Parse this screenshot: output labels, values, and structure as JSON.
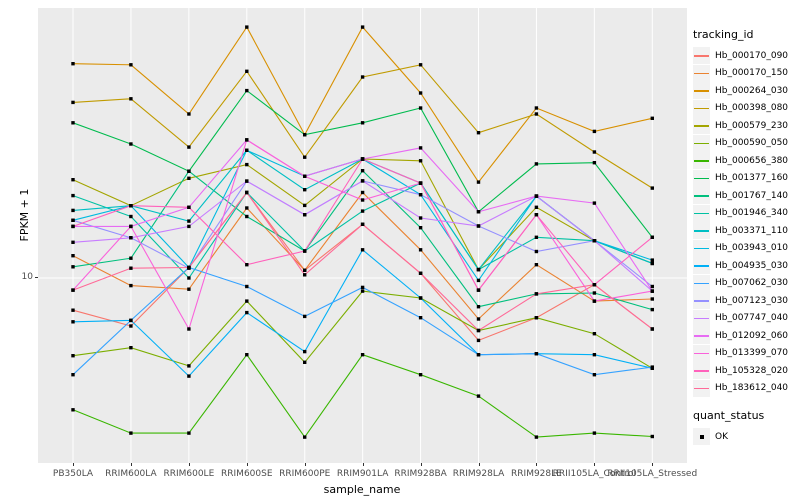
{
  "axes": {
    "x_title": "sample_name",
    "y_title": "FPKM + 1",
    "y_tick_label": "10"
  },
  "legend": {
    "tracking_title": "tracking_id",
    "quant_title": "quant_status",
    "quant_items": [
      {
        "label": "OK",
        "glyph": "black-square"
      }
    ]
  },
  "style": {
    "panel_bg": "#EBEBEB",
    "gridline_color": "#FFFFFF",
    "point_color": "#000000",
    "axis_text_color": "#4D4D4D",
    "legend_key_bg": "#F2F2F2"
  },
  "chart_data": {
    "type": "line",
    "scale_y": "log10",
    "title": "",
    "xlabel": "sample_name",
    "ylabel": "FPKM + 1",
    "ylim": [
      1,
      288
    ],
    "y_breaks_shown": [
      10
    ],
    "grid": "vertical-per-category-plus-y10",
    "legend_position": "right",
    "point_shape": "filled-black-square (quant_status OK)",
    "categories": [
      "PB350LA",
      "RRIM600LA",
      "RRIM600LE",
      "RRIM600SE",
      "RRIM600PE",
      "RRIM901LA",
      "RRIM928BA",
      "RRIM928LA",
      "RRIM928LE",
      "RRII105LA_Control",
      "RRII105LA_Stressed"
    ],
    "series": [
      {
        "name": "Hb_000170_090",
        "color": "#F8766D",
        "values": [
          6.7,
          5.5,
          11.4,
          29,
          11,
          19.5,
          10.6,
          4.6,
          6.1,
          9.2,
          5.3
        ]
      },
      {
        "name": "Hb_000170_150",
        "color": "#EA8331",
        "values": [
          13.2,
          9.1,
          8.7,
          23.9,
          11,
          29,
          14.2,
          6.0,
          11.8,
          7.5,
          7.7
        ]
      },
      {
        "name": "Hb_000264_030",
        "color": "#D89000",
        "values": [
          144,
          142,
          77,
          227,
          59.5,
          227,
          100,
          33,
          83,
          62,
          73
        ]
      },
      {
        "name": "Hb_000398_080",
        "color": "#C09B00",
        "values": [
          89,
          93,
          51,
          131,
          45,
          122,
          142,
          61,
          77,
          48,
          30.6
        ]
      },
      {
        "name": "Hb_000579_230",
        "color": "#A3A500",
        "values": [
          34,
          24.6,
          34.6,
          41,
          24.7,
          44,
          43,
          11.1,
          24.1,
          15.9,
          12
        ]
      },
      {
        "name": "Hb_000590_050",
        "color": "#7CAE00",
        "values": [
          3.8,
          4.2,
          3.35,
          7.5,
          3.5,
          8.5,
          7.8,
          5.2,
          6.1,
          5.0,
          3.25
        ]
      },
      {
        "name": "Hb_000656_380",
        "color": "#39B600",
        "values": [
          1.94,
          1.45,
          1.45,
          3.85,
          1.38,
          3.85,
          3.0,
          2.3,
          1.38,
          1.45,
          1.39
        ]
      },
      {
        "name": "Hb_001377_160",
        "color": "#00BB4E",
        "values": [
          69,
          53,
          37.8,
          103,
          59.5,
          69,
          83,
          22.8,
          41.4,
          42,
          16.6
        ]
      },
      {
        "name": "Hb_001767_140",
        "color": "#00BF7D",
        "values": [
          11.5,
          12.8,
          37.8,
          21.5,
          14,
          38,
          18.7,
          7.0,
          8.2,
          8.3,
          6.75
        ]
      },
      {
        "name": "Hb_001946_340",
        "color": "#00C1A3",
        "values": [
          27.9,
          21.5,
          10,
          29,
          14,
          23,
          32.6,
          11.1,
          16.6,
          15.9,
          12
        ]
      },
      {
        "name": "Hb_003371_110",
        "color": "#00BFC4",
        "values": [
          23.2,
          24.6,
          20.3,
          49,
          30,
          44,
          32.6,
          11.1,
          27.7,
          15.9,
          12
        ]
      },
      {
        "name": "Hb_003943_010",
        "color": "#00BAE0",
        "values": [
          20.5,
          24.6,
          11.4,
          49,
          35.5,
          44,
          28.2,
          9.7,
          27.7,
          15.9,
          12.5
        ]
      },
      {
        "name": "Hb_004935_030",
        "color": "#00B0F6",
        "values": [
          5.8,
          5.9,
          2.95,
          6.5,
          4.0,
          14.2,
          7.8,
          3.85,
          3.9,
          3.85,
          3.25
        ]
      },
      {
        "name": "Hb_007062_030",
        "color": "#35A2FF",
        "values": [
          3.0,
          5.9,
          11.4,
          9.0,
          6.2,
          8.9,
          6.1,
          3.85,
          3.9,
          3.0,
          3.3
        ]
      },
      {
        "name": "Hb_007123_030",
        "color": "#9590FF",
        "values": [
          20.5,
          16.5,
          11.3,
          33.4,
          22,
          33.5,
          28.2,
          19.1,
          13.9,
          15.9,
          9.0
        ]
      },
      {
        "name": "Hb_007747_040",
        "color": "#C77CFF",
        "values": [
          15.6,
          16.5,
          19,
          33.4,
          22,
          33.5,
          21.1,
          19.1,
          27.7,
          15.9,
          8.5
        ]
      },
      {
        "name": "Hb_012092_060",
        "color": "#E76BF3",
        "values": [
          19,
          19,
          24.1,
          55.8,
          35.5,
          44,
          50.5,
          22.8,
          27.7,
          25.4,
          8.5
        ]
      },
      {
        "name": "Hb_013399_070",
        "color": "#FA62DB",
        "values": [
          8.6,
          19,
          5.3,
          55.8,
          35.5,
          26.4,
          32.6,
          8.6,
          22,
          7.5,
          8.5
        ]
      },
      {
        "name": "Hb_105328_020",
        "color": "#FF62BC",
        "values": [
          19,
          24.6,
          24.1,
          11.8,
          14,
          44,
          32.6,
          8.6,
          22,
          9.2,
          16.6
        ]
      },
      {
        "name": "Hb_183612_040",
        "color": "#FF6A98",
        "values": [
          8.6,
          11.3,
          11.4,
          29,
          10.4,
          19.5,
          10.6,
          5.2,
          8.2,
          9.2,
          5.3
        ]
      }
    ]
  }
}
